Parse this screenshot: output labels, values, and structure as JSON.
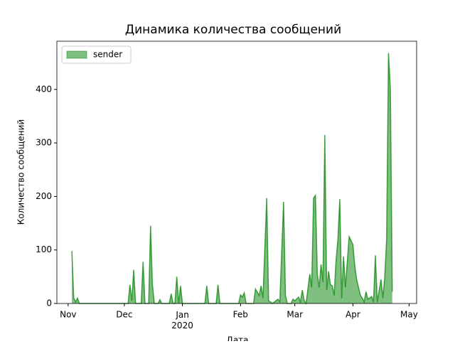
{
  "chart_data": {
    "type": "area",
    "title": "Динамика количества сообщений",
    "xlabel": "Дата",
    "ylabel": "Количество сообщений",
    "x": [
      "2019-11-03",
      "2019-11-04",
      "2019-11-05",
      "2019-11-06",
      "2019-11-07",
      "2019-12-03",
      "2019-12-04",
      "2019-12-05",
      "2019-12-06",
      "2019-12-07",
      "2019-12-10",
      "2019-12-11",
      "2019-12-12",
      "2019-12-14",
      "2019-12-15",
      "2019-12-16",
      "2019-12-17",
      "2019-12-19",
      "2019-12-20",
      "2019-12-21",
      "2019-12-25",
      "2019-12-26",
      "2019-12-27",
      "2019-12-28",
      "2019-12-29",
      "2019-12-30",
      "2019-12-31",
      "2020-01-01",
      "2020-01-13",
      "2020-01-14",
      "2020-01-15",
      "2020-01-19",
      "2020-01-20",
      "2020-01-21",
      "2020-01-31",
      "2020-02-01",
      "2020-02-02",
      "2020-02-03",
      "2020-02-04",
      "2020-02-08",
      "2020-02-09",
      "2020-02-11",
      "2020-02-12",
      "2020-02-13",
      "2020-02-15",
      "2020-02-16",
      "2020-02-17",
      "2020-02-18",
      "2020-02-21",
      "2020-02-22",
      "2020-02-24",
      "2020-02-25",
      "2020-02-26",
      "2020-02-28",
      "2020-02-29",
      "2020-03-01",
      "2020-03-03",
      "2020-03-04",
      "2020-03-05",
      "2020-03-06",
      "2020-03-07",
      "2020-03-09",
      "2020-03-10",
      "2020-03-11",
      "2020-03-12",
      "2020-03-13",
      "2020-03-14",
      "2020-03-15",
      "2020-03-16",
      "2020-03-17",
      "2020-03-18",
      "2020-03-19",
      "2020-03-20",
      "2020-03-21",
      "2020-03-22",
      "2020-03-23",
      "2020-03-24",
      "2020-03-25",
      "2020-03-26",
      "2020-03-27",
      "2020-03-28",
      "2020-03-30",
      "2020-04-01",
      "2020-04-02",
      "2020-04-03",
      "2020-04-05",
      "2020-04-06",
      "2020-04-07",
      "2020-04-08",
      "2020-04-09",
      "2020-04-11",
      "2020-04-12",
      "2020-04-13",
      "2020-04-14",
      "2020-04-16",
      "2020-04-17",
      "2020-04-18",
      "2020-04-19",
      "2020-04-20",
      "2020-04-21",
      "2020-04-22"
    ],
    "series": [
      {
        "name": "sender",
        "color": "green",
        "values": [
          98,
          10,
          3,
          10,
          0,
          0,
          35,
          5,
          63,
          0,
          0,
          78,
          0,
          0,
          145,
          35,
          0,
          0,
          7,
          0,
          0,
          18,
          0,
          0,
          50,
          0,
          33,
          0,
          0,
          33,
          0,
          0,
          35,
          0,
          0,
          16,
          12,
          20,
          0,
          0,
          27,
          15,
          33,
          10,
          197,
          5,
          3,
          0,
          8,
          3,
          190,
          15,
          0,
          0,
          8,
          5,
          12,
          3,
          25,
          5,
          0,
          55,
          30,
          197,
          202,
          55,
          30,
          73,
          40,
          315,
          25,
          60,
          35,
          33,
          15,
          80,
          120,
          195,
          10,
          88,
          30,
          125,
          110,
          70,
          45,
          15,
          10,
          3,
          22,
          8,
          13,
          3,
          90,
          3,
          45,
          10,
          50,
          120,
          468,
          400,
          22
        ]
      }
    ],
    "xlim": [
      "2019-10-26",
      "2020-05-05"
    ],
    "xticks": [
      {
        "value": "2019-11-01",
        "label": "Nov"
      },
      {
        "value": "2019-12-01",
        "label": "Dec"
      },
      {
        "value": "2020-01-01",
        "label": "Jan\n2020"
      },
      {
        "value": "2020-02-01",
        "label": "Feb"
      },
      {
        "value": "2020-03-01",
        "label": "Mar"
      },
      {
        "value": "2020-04-01",
        "label": "Apr"
      },
      {
        "value": "2020-05-01",
        "label": "May"
      }
    ],
    "ylim": [
      0,
      490
    ],
    "yticks": [
      0,
      100,
      200,
      300,
      400
    ],
    "legend": "upper left"
  }
}
